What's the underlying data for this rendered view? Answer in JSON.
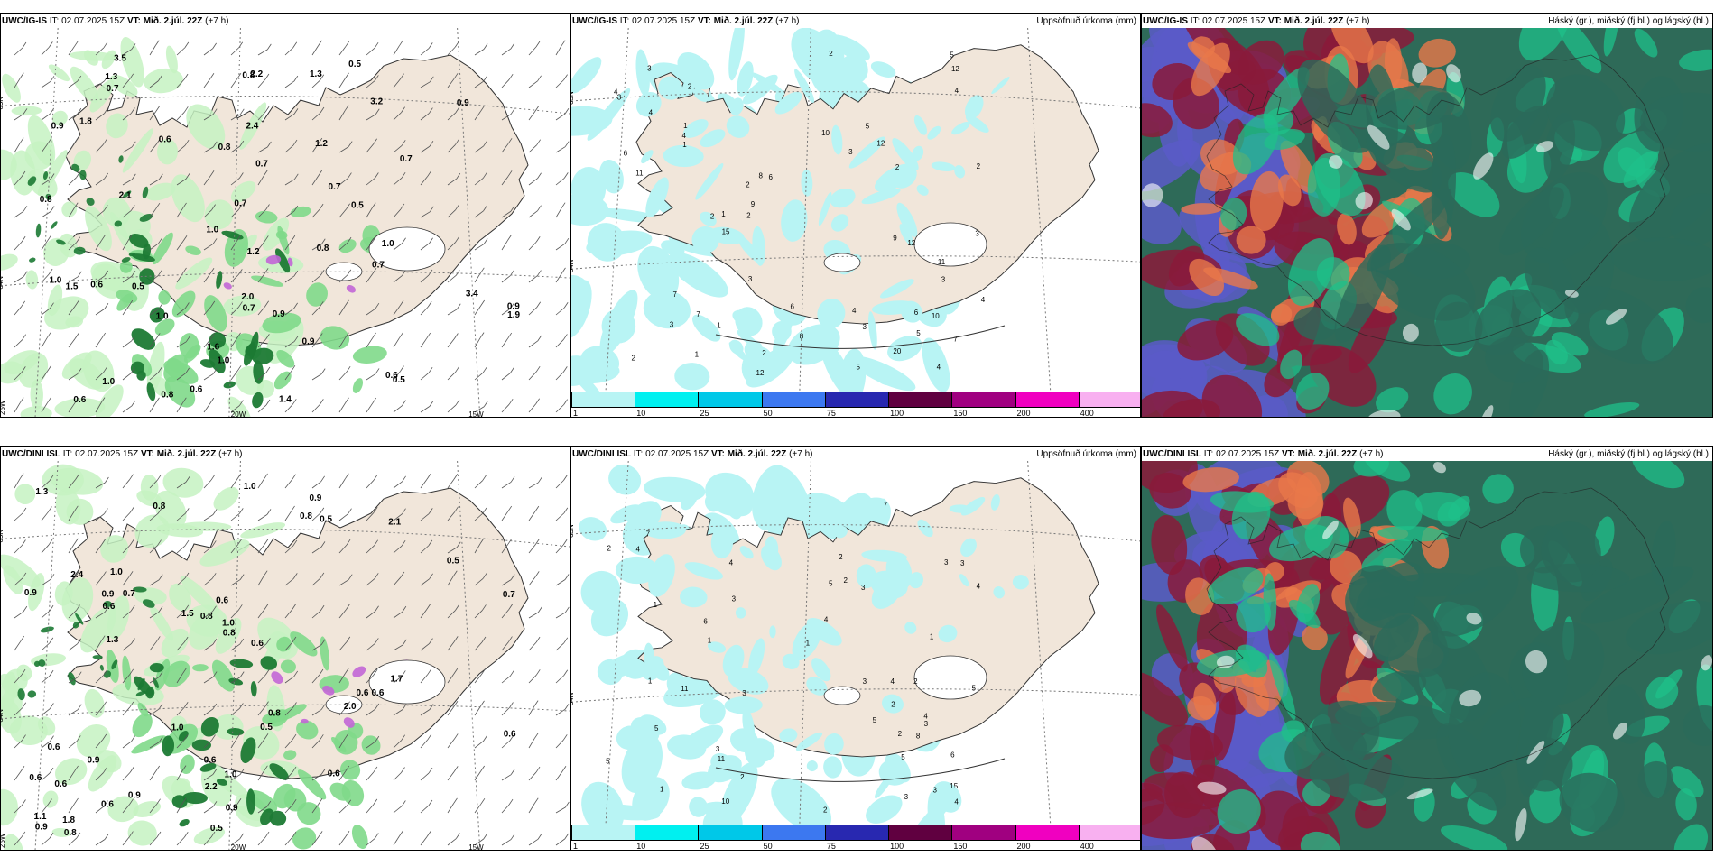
{
  "panels": [
    {
      "id": "p1",
      "title_model": "UWC/IG-IS",
      "title_it": " IT: 02.07.2025 15Z ",
      "title_vt": "VT: Mið. 2.júl. 22Z",
      "title_step": " (+7 h)",
      "right_title": "",
      "type": "precip-wind",
      "values": [
        "0.6",
        "0.5",
        "0.8",
        "0.6",
        "0.7",
        "0.9",
        "0.9",
        "1.0",
        "1.6",
        "2.1",
        "0.7",
        "0.5",
        "0.7",
        "2.0",
        "1.5",
        "1.9",
        "1.4",
        "0.8",
        "1.3",
        "1.0",
        "1.2",
        "0.7",
        "1.0",
        "1.0",
        "3.4",
        "3.2",
        "2.4",
        "1.0",
        "1.3",
        "3.5",
        "0.9",
        "0.8",
        "1.2",
        "1.0",
        "0.9",
        "0.8",
        "0.9",
        "0.7",
        "0.7",
        "0.6",
        "0.6",
        "0.5",
        "0.7",
        "1.8",
        "0.6",
        "0.8",
        "2.2",
        "0.5"
      ],
      "grid_labels": [
        "65N",
        "64N",
        "25W",
        "20W",
        "15W"
      ]
    },
    {
      "id": "p2",
      "title_model": "UWC/IG-IS",
      "title_it": " IT: 02.07.2025 15Z ",
      "title_vt": "VT: Mið. 2.júl. 22Z",
      "title_step": " (+7 h)",
      "right_title": "Uppsöfnuð úrkoma (mm)",
      "type": "accum",
      "values": [
        "1",
        "1",
        "3",
        "3",
        "3",
        "4",
        "5",
        "4",
        "2",
        "2",
        "3",
        "4",
        "6",
        "8",
        "10",
        "12",
        "1",
        "2",
        "3",
        "6",
        "7",
        "9",
        "11",
        "9",
        "5",
        "4",
        "7",
        "6",
        "12",
        "20",
        "12",
        "12",
        "10",
        "6",
        "5",
        "4",
        "3",
        "2",
        "8",
        "15",
        "2",
        "1",
        "4",
        "3",
        "2",
        "1",
        "2",
        "7",
        "5",
        "3",
        "2",
        "11",
        "4",
        "2"
      ],
      "grid_labels": [
        "65N",
        "64N"
      ],
      "colorbar": {
        "ticks": [
          "1",
          "10",
          "25",
          "50",
          "75",
          "100",
          "150",
          "200",
          "400"
        ],
        "colors": [
          "#b8f4f4",
          "#00f0f0",
          "#00c8e8",
          "#3c78f0",
          "#2828b0",
          "#600040",
          "#a00080",
          "#f000c0",
          "#f8b0f0"
        ]
      }
    },
    {
      "id": "p3",
      "title_model": "UWC/IG-IS",
      "title_it": " IT: 02.07.2025 15Z ",
      "title_vt": "VT: Mið. 2.júl. 22Z",
      "title_step": " (+7 h)",
      "right_title": "Háský (gr.), miðský (fj.bl.) og lágský (bl.)",
      "type": "cloud"
    },
    {
      "id": "p4",
      "title_model": "UWC/DINI ISL",
      "title_it": " IT: 02.07.2025 15Z ",
      "title_vt": "VT: Mið. 2.júl. 22Z",
      "title_step": " (+7 h)",
      "right_title": "",
      "type": "precip-wind",
      "values": [
        "0.6",
        "0.5",
        "0.7",
        "0.6",
        "0.5",
        "0.6",
        "0.7",
        "1.0",
        "1.1",
        "1.0",
        "0.8",
        "0.6",
        "0.5",
        "2.1",
        "0.8",
        "0.6",
        "0.9",
        "0.8",
        "0.9",
        "0.6",
        "0.5",
        "1.0",
        "1.3",
        "0.9",
        "1.0",
        "0.8",
        "1.8",
        "0.9",
        "0.8",
        "1.5",
        "0.6",
        "1.0",
        "0.9",
        "0.6",
        "0.9",
        "0.6",
        "1.3",
        "2.4",
        "1.7",
        "0.6",
        "2.2",
        "0.8",
        "0.6",
        "0.6",
        "2.0",
        "0.9"
      ],
      "grid_labels": [
        "65N",
        "64N",
        "25W",
        "20W",
        "15W"
      ]
    },
    {
      "id": "p5",
      "title_model": "UWC/DINI ISL",
      "title_it": " IT: 02.07.2025 15Z ",
      "title_vt": "VT: Mið. 2.júl. 22Z",
      "title_step": " (+7 h)",
      "right_title": "Uppsöfnuð úrkoma (mm)",
      "type": "accum",
      "values": [
        "1",
        "1",
        "2",
        "2",
        "5",
        "4",
        "3",
        "2",
        "1",
        "1",
        "7",
        "8",
        "11",
        "5",
        "4",
        "3",
        "2",
        "3",
        "4",
        "5",
        "3",
        "10",
        "11",
        "4",
        "3",
        "2",
        "7",
        "3",
        "1",
        "5",
        "4",
        "2",
        "3",
        "4",
        "6",
        "5",
        "3",
        "2",
        "15",
        "6",
        "1",
        "2",
        "3",
        "4",
        "5",
        "3"
      ],
      "grid_labels": [
        "65N",
        "64N"
      ],
      "colorbar": {
        "ticks": [
          "1",
          "10",
          "25",
          "50",
          "75",
          "100",
          "150",
          "200",
          "400"
        ],
        "colors": [
          "#b8f4f4",
          "#00f0f0",
          "#00c8e8",
          "#3c78f0",
          "#2828b0",
          "#600040",
          "#a00080",
          "#f000c0",
          "#f8b0f0"
        ]
      }
    },
    {
      "id": "p6",
      "title_model": "UWC/DINI ISL",
      "title_it": " IT: 02.07.2025 15Z ",
      "title_vt": "VT: Mið. 2.júl. 22Z",
      "title_step": " (+7 h)",
      "right_title": "Háský (gr.), miðský (fj.bl.) og lágský (bl.)",
      "type": "cloud"
    }
  ],
  "colors": {
    "land": "#f1e6da",
    "precip_light": "#c6f2c2",
    "precip_mid": "#7fd98a",
    "precip_dark": "#1c7a34",
    "precip_max": "#c266d6",
    "accum_light": "#b8f4f4",
    "cloud_high": "#2e6a58",
    "cloud_mid": "#1fc08a",
    "cloud_low": "#5b5bc8",
    "cloud_red": "#8a1a3a",
    "cloud_orange": "#e8784a"
  }
}
